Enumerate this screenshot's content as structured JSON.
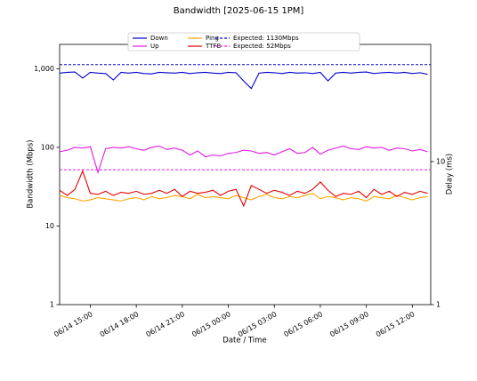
{
  "chart_data": {
    "type": "line",
    "title": "Bandwidth [2025-06-15 1PM]",
    "x_label": "Date / Time",
    "y_label": "Bandwidth (Mbps)",
    "y2_label": "Delay (ms)",
    "log_scale": true,
    "legend": "top",
    "x": [
      13,
      13.5,
      14,
      14.5,
      15,
      15.5,
      16,
      16.5,
      17,
      17.5,
      18,
      18.5,
      19,
      19.5,
      20,
      20.5,
      21,
      21.5,
      22,
      22.5,
      23,
      23.5,
      24,
      24.5,
      25,
      25.5,
      26,
      26.5,
      27,
      27.5,
      28,
      28.5,
      29,
      29.5,
      30,
      30.5,
      31,
      31.5,
      32,
      32.5,
      33,
      33.5,
      34,
      34.5,
      35,
      35.5,
      36,
      36.5,
      37
    ],
    "xlim": [
      13,
      37.2
    ],
    "xticks": [
      {
        "value": 15,
        "label": "06/14 15:00"
      },
      {
        "value": 18,
        "label": "06/14 18:00"
      },
      {
        "value": 21,
        "label": "06/14 21:00"
      },
      {
        "value": 24,
        "label": "06/15 00:00"
      },
      {
        "value": 27,
        "label": "06/15 03:00"
      },
      {
        "value": 30,
        "label": "06/15 06:00"
      },
      {
        "value": 33,
        "label": "06/15 09:00"
      },
      {
        "value": 36,
        "label": "06/15 12:00"
      }
    ],
    "ylim": [
      1,
      2040
    ],
    "yticks": [
      1,
      10,
      100,
      {
        "value": 1000,
        "label": "1,000"
      }
    ],
    "y2lim": [
      1,
      66
    ],
    "y2ticks": [
      1,
      10
    ],
    "series": [
      {
        "name": "Down",
        "color": "#0000cc",
        "values": [
          880,
          900,
          910,
          760,
          900,
          880,
          870,
          720,
          900,
          880,
          900,
          870,
          860,
          900,
          890,
          880,
          900,
          870,
          890,
          900,
          880,
          870,
          900,
          890,
          700,
          560,
          880,
          900,
          890,
          870,
          900,
          880,
          890,
          870,
          900,
          700,
          880,
          900,
          880,
          900,
          910,
          870,
          890,
          900,
          880,
          900,
          870,
          890,
          850
        ]
      },
      {
        "name": "Up",
        "color": "#e619e6",
        "values": [
          88,
          92,
          100,
          98,
          102,
          48,
          96,
          100,
          98,
          102,
          96,
          92,
          100,
          104,
          94,
          98,
          92,
          80,
          90,
          76,
          80,
          78,
          84,
          86,
          92,
          90,
          84,
          86,
          80,
          88,
          96,
          84,
          86,
          100,
          82,
          92,
          98,
          104,
          96,
          94,
          102,
          98,
          100,
          92,
          98,
          96,
          90,
          94,
          88
        ]
      },
      {
        "name": "Ping",
        "color": "#ffa500",
        "axis": "y2",
        "values": [
          5.8,
          5.6,
          5.5,
          5.3,
          5.4,
          5.6,
          5.5,
          5.4,
          5.3,
          5.5,
          5.6,
          5.4,
          5.7,
          5.5,
          5.6,
          5.8,
          5.7,
          5.5,
          5.9,
          5.6,
          5.7,
          5.6,
          5.5,
          5.8,
          5.6,
          5.4,
          5.7,
          5.9,
          5.6,
          5.5,
          5.7,
          5.6,
          5.8,
          6.0,
          5.5,
          5.7,
          5.6,
          5.4,
          5.6,
          5.5,
          5.3,
          5.7,
          5.6,
          5.5,
          5.8,
          5.6,
          5.4,
          5.6,
          5.7
        ]
      },
      {
        "name": "TTFB",
        "color": "#e60000",
        "axis": "y2",
        "values": [
          6.3,
          5.8,
          6.4,
          8.6,
          6.0,
          5.9,
          6.2,
          5.8,
          6.1,
          6.0,
          6.2,
          5.9,
          6.0,
          6.3,
          6.0,
          6.4,
          5.7,
          6.2,
          6.0,
          6.1,
          6.3,
          5.8,
          6.2,
          6.4,
          4.9,
          6.8,
          6.4,
          6.0,
          6.3,
          6.1,
          5.8,
          6.2,
          6.0,
          6.4,
          7.2,
          6.3,
          5.7,
          6.0,
          5.9,
          6.2,
          5.6,
          6.4,
          5.9,
          6.2,
          5.7,
          6.1,
          5.9,
          6.2,
          6.0
        ]
      }
    ],
    "hlines": [
      {
        "name": "Expected: 1130Mbps",
        "color": "#0000cc",
        "value": 1130
      },
      {
        "name": "Expected: 52Mbps",
        "color": "#e619e6",
        "value": 52
      }
    ]
  }
}
